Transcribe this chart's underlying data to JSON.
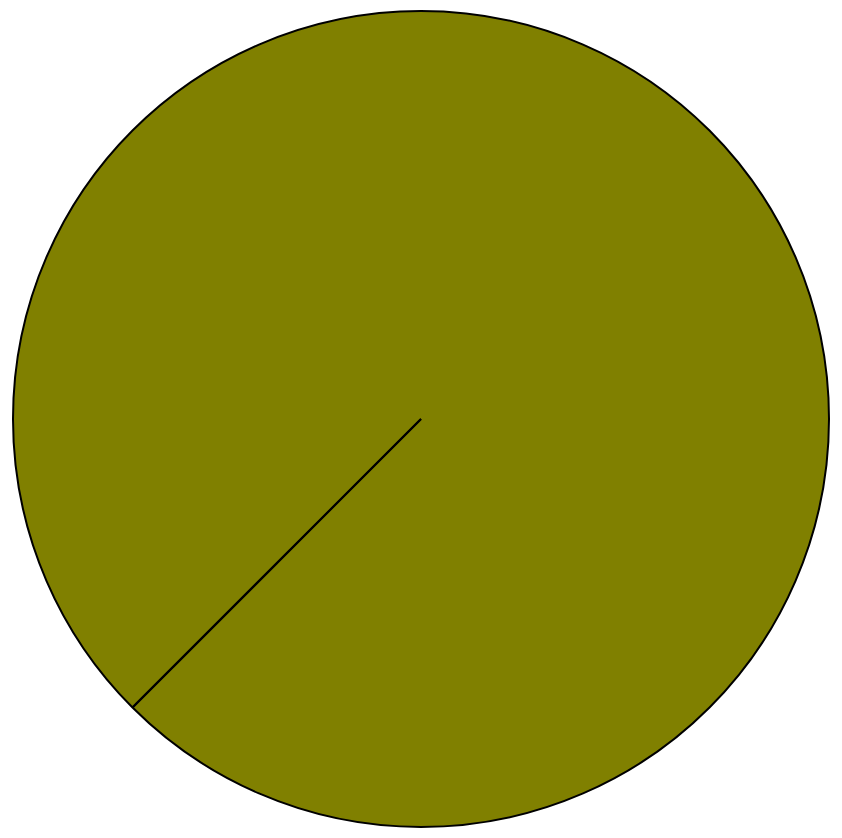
{
  "chart_data": {
    "type": "pie",
    "categories": [
      null
    ],
    "values": [
      100
    ],
    "colors": [
      "#808000"
    ],
    "legend": false
  }
}
